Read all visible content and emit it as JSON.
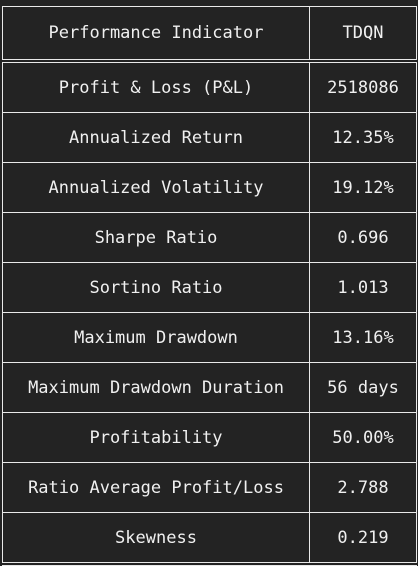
{
  "table": {
    "headers": [
      "Performance Indicator",
      "TDQN"
    ],
    "rows": [
      [
        "Profit & Loss (P&L)",
        "2518086"
      ],
      [
        "Annualized Return",
        "12.35%"
      ],
      [
        "Annualized Volatility",
        "19.12%"
      ],
      [
        "Sharpe Ratio",
        "0.696"
      ],
      [
        "Sortino Ratio",
        "1.013"
      ],
      [
        "Maximum Drawdown",
        "13.16%"
      ],
      [
        "Maximum Drawdown Duration",
        "56 days"
      ],
      [
        "Profitability",
        "50.00%"
      ],
      [
        "Ratio Average Profit/Loss",
        "2.788"
      ],
      [
        "Skewness",
        "0.219"
      ]
    ]
  }
}
